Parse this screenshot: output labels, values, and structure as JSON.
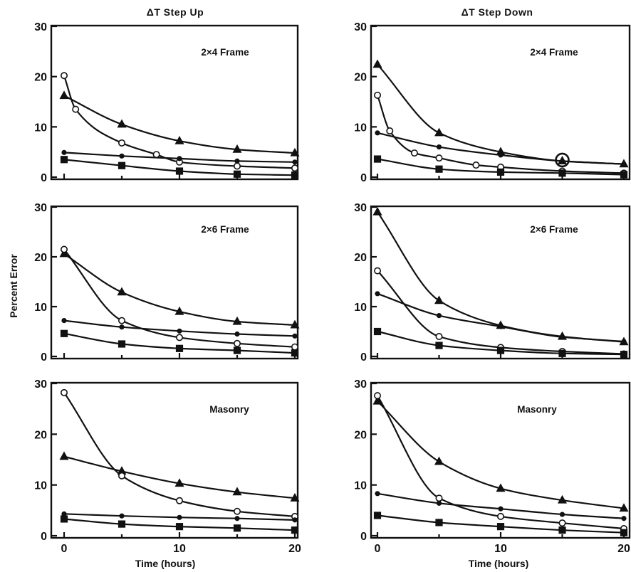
{
  "figure": {
    "column_titles": [
      "ΔT Step Up",
      "ΔT Step Down"
    ],
    "ylabel": "Percent Error",
    "xlabel": "Time (hours)",
    "x_ticks": [
      "0",
      "10",
      "20"
    ],
    "x_tick_last_right": "20",
    "y_ticks": [
      "0",
      "10",
      "20",
      "30"
    ]
  },
  "chart_data": [
    {
      "type": "line",
      "title": "2×4 Frame",
      "column": "ΔT Step Up",
      "xlabel": "",
      "ylabel": "",
      "xlim": [
        0,
        20
      ],
      "ylim": [
        0,
        30
      ],
      "series": [
        {
          "marker": "triangle",
          "x": [
            0,
            5,
            10,
            15,
            20
          ],
          "values": [
            16.2,
            10.5,
            7.2,
            5.5,
            4.8
          ]
        },
        {
          "marker": "open-circle",
          "x": [
            0,
            1,
            5,
            8,
            10,
            15,
            20
          ],
          "values": [
            20.2,
            13.5,
            6.8,
            4.5,
            3.0,
            2.2,
            1.8
          ]
        },
        {
          "marker": "dot",
          "x": [
            0,
            5,
            10,
            15,
            20
          ],
          "values": [
            4.9,
            4.2,
            3.7,
            3.2,
            3.0
          ]
        },
        {
          "marker": "square",
          "x": [
            0,
            5,
            10,
            15,
            20
          ],
          "values": [
            3.5,
            2.3,
            1.2,
            0.6,
            0.4
          ]
        }
      ]
    },
    {
      "type": "line",
      "title": "2×4 Frame",
      "column": "ΔT Step Down",
      "xlabel": "",
      "ylabel": "",
      "xlim": [
        0,
        20
      ],
      "ylim": [
        0,
        30
      ],
      "series": [
        {
          "marker": "triangle",
          "x": [
            0,
            5,
            10,
            15,
            20
          ],
          "values": [
            22.4,
            8.8,
            5.0,
            3.2,
            2.6
          ]
        },
        {
          "marker": "open-circle",
          "x": [
            0,
            1,
            3,
            5,
            8,
            10,
            15,
            20
          ],
          "values": [
            16.3,
            9.2,
            4.8,
            3.8,
            2.4,
            2.0,
            1.2,
            0.8
          ]
        },
        {
          "marker": "dot",
          "x": [
            0,
            5,
            10,
            15,
            20
          ],
          "values": [
            8.8,
            6.0,
            4.4,
            3.2,
            2.6
          ]
        },
        {
          "marker": "square",
          "x": [
            0,
            5,
            10,
            15,
            20
          ],
          "values": [
            3.6,
            1.6,
            1.0,
            0.8,
            0.5
          ]
        },
        {
          "marker": "large-circle",
          "x": [
            15
          ],
          "values": [
            3.4
          ]
        }
      ]
    },
    {
      "type": "line",
      "title": "2×6 Frame",
      "column": "ΔT Step Up",
      "xlabel": "",
      "ylabel": "Percent Error",
      "xlim": [
        0,
        20
      ],
      "ylim": [
        0,
        30
      ],
      "series": [
        {
          "marker": "triangle",
          "x": [
            0,
            5,
            10,
            15,
            20
          ],
          "values": [
            20.6,
            12.9,
            9.0,
            7.0,
            6.3
          ]
        },
        {
          "marker": "open-circle",
          "x": [
            0,
            5,
            10,
            15,
            20
          ],
          "values": [
            21.5,
            7.2,
            3.8,
            2.6,
            1.9
          ]
        },
        {
          "marker": "dot",
          "x": [
            0,
            5,
            10,
            15,
            20
          ],
          "values": [
            7.2,
            5.9,
            5.1,
            4.5,
            4.1
          ]
        },
        {
          "marker": "square",
          "x": [
            0,
            5,
            10,
            15,
            20
          ],
          "values": [
            4.6,
            2.5,
            1.6,
            1.2,
            0.7
          ]
        }
      ]
    },
    {
      "type": "line",
      "title": "2×6 Frame",
      "column": "ΔT Step Down",
      "xlabel": "",
      "ylabel": "",
      "xlim": [
        0,
        20
      ],
      "ylim": [
        0,
        30
      ],
      "series": [
        {
          "marker": "triangle",
          "x": [
            0,
            5,
            10,
            15,
            20
          ],
          "values": [
            29.0,
            11.2,
            6.2,
            4.0,
            2.9
          ]
        },
        {
          "marker": "open-circle",
          "x": [
            0,
            5,
            10,
            15,
            20
          ],
          "values": [
            17.2,
            4.0,
            1.8,
            1.0,
            0.5
          ]
        },
        {
          "marker": "dot",
          "x": [
            0,
            5,
            10,
            15,
            20
          ],
          "values": [
            12.6,
            8.2,
            6.0,
            3.9,
            3.0
          ]
        },
        {
          "marker": "square",
          "x": [
            0,
            5,
            10,
            15,
            20
          ],
          "values": [
            5.0,
            2.2,
            1.2,
            0.6,
            0.4
          ]
        }
      ]
    },
    {
      "type": "line",
      "title": "Masonry",
      "column": "ΔT Step Up",
      "xlabel": "Time (hours)",
      "ylabel": "",
      "xlim": [
        0,
        20
      ],
      "ylim": [
        0,
        30
      ],
      "series": [
        {
          "marker": "triangle",
          "x": [
            0,
            5,
            10,
            15,
            20
          ],
          "values": [
            15.6,
            12.7,
            10.3,
            8.6,
            7.4
          ]
        },
        {
          "marker": "open-circle",
          "x": [
            0,
            5,
            10,
            15,
            20
          ],
          "values": [
            28.2,
            11.8,
            6.9,
            4.8,
            3.8
          ]
        },
        {
          "marker": "dot",
          "x": [
            0,
            5,
            10,
            15,
            20
          ],
          "values": [
            4.3,
            3.9,
            3.6,
            3.4,
            3.1
          ]
        },
        {
          "marker": "square",
          "x": [
            0,
            5,
            10,
            15,
            20
          ],
          "values": [
            3.3,
            2.3,
            1.8,
            1.5,
            1.1
          ]
        }
      ]
    },
    {
      "type": "line",
      "title": "Masonry",
      "column": "ΔT Step Down",
      "xlabel": "Time (hours)",
      "ylabel": "",
      "xlim": [
        0,
        20
      ],
      "ylim": [
        0,
        30
      ],
      "series": [
        {
          "marker": "triangle",
          "x": [
            0,
            5,
            10,
            15,
            20
          ],
          "values": [
            26.5,
            14.6,
            9.3,
            7.0,
            5.4
          ]
        },
        {
          "marker": "open-circle",
          "x": [
            0,
            5,
            10,
            15,
            20
          ],
          "values": [
            27.6,
            7.4,
            3.8,
            2.5,
            1.4
          ]
        },
        {
          "marker": "dot",
          "x": [
            0,
            5,
            10,
            15,
            20
          ],
          "values": [
            8.3,
            6.4,
            5.3,
            4.2,
            3.4
          ]
        },
        {
          "marker": "square",
          "x": [
            0,
            5,
            10,
            15,
            20
          ],
          "values": [
            4.0,
            2.6,
            1.8,
            1.1,
            0.6
          ]
        }
      ]
    }
  ]
}
